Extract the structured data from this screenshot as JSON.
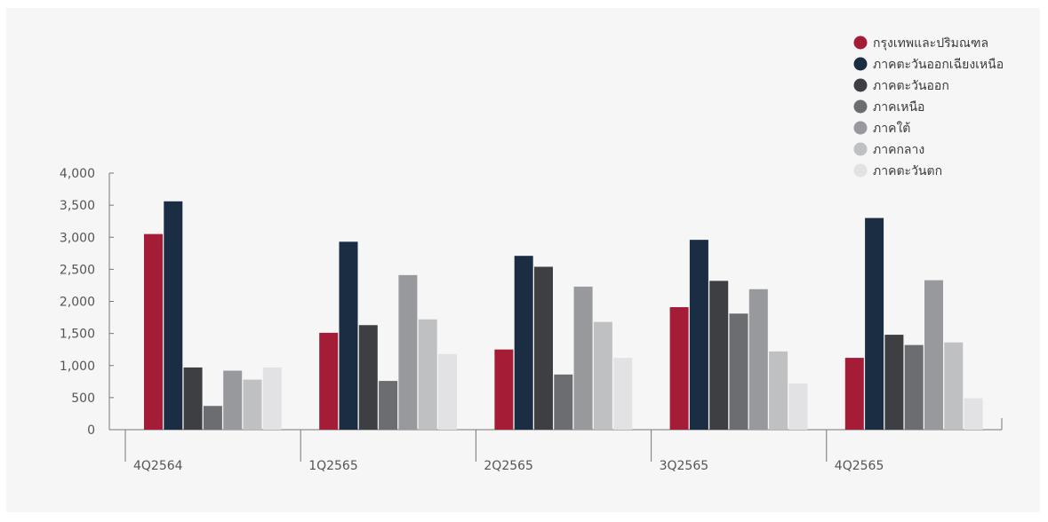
{
  "chart_data": {
    "type": "bar",
    "categories": [
      "4Q2564",
      "1Q2565",
      "2Q2565",
      "3Q2565",
      "4Q2565"
    ],
    "ylim": [
      0,
      4000
    ],
    "yticks": [
      0,
      500,
      1000,
      1500,
      2000,
      2500,
      3000,
      3500,
      4000
    ],
    "ytick_labels": [
      "0",
      "500",
      "1,000",
      "1,500",
      "2,000",
      "2,500",
      "3,000",
      "3,500",
      "4,000"
    ],
    "legend_position": "top-right",
    "grid": false,
    "series": [
      {
        "name": "กรุงเทพและปริมณฑล",
        "color": "#a51c36",
        "values": [
          3050,
          1510,
          1250,
          1910,
          1120
        ]
      },
      {
        "name": "ภาคตะวันออกเฉียงเหนือ",
        "color": "#1b2d42",
        "values": [
          3560,
          2930,
          2710,
          2960,
          3300
        ]
      },
      {
        "name": "ภาคตะวันออก",
        "color": "#3e3f42",
        "values": [
          970,
          1630,
          2540,
          2320,
          1480
        ]
      },
      {
        "name": "ภาคเหนือ",
        "color": "#6c6d70",
        "values": [
          370,
          760,
          860,
          1810,
          1320
        ]
      },
      {
        "name": "ภาคใต้",
        "color": "#98999c",
        "values": [
          920,
          2410,
          2230,
          2190,
          2330
        ]
      },
      {
        "name": "ภาคกลาง",
        "color": "#bfc0c2",
        "values": [
          780,
          1720,
          1680,
          1220,
          1360
        ]
      },
      {
        "name": "ภาคตะวันตก",
        "color": "#e2e2e4",
        "values": [
          970,
          1180,
          1120,
          720,
          490
        ]
      }
    ]
  }
}
